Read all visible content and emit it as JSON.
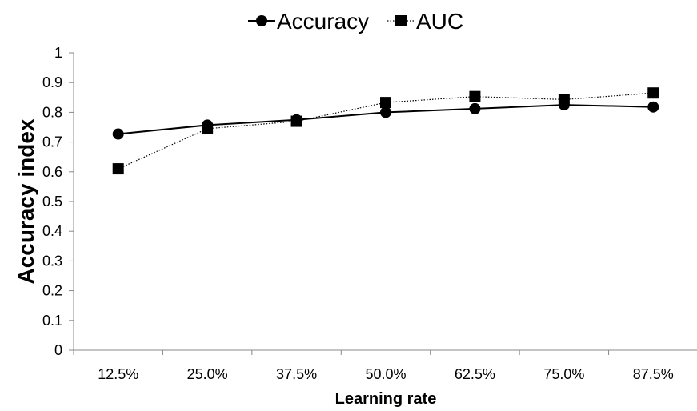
{
  "chart_data": {
    "type": "line",
    "categories": [
      "12.5%",
      "25.0%",
      "37.5%",
      "50.0%",
      "62.5%",
      "75.0%",
      "87.5%"
    ],
    "series": [
      {
        "name": "Accuracy",
        "values": [
          0.727,
          0.757,
          0.775,
          0.8,
          0.812,
          0.825,
          0.818
        ],
        "marker": "circle",
        "line_style": "solid",
        "color": "#000000"
      },
      {
        "name": "AUC",
        "values": [
          0.61,
          0.745,
          0.77,
          0.833,
          0.853,
          0.843,
          0.865
        ],
        "marker": "square",
        "line_style": "dotted",
        "color": "#000000"
      }
    ],
    "xlabel": "Learning rate",
    "ylabel": "Accuracy index",
    "ylim": [
      0,
      1
    ],
    "yticks": [
      "0",
      "0.1",
      "0.2",
      "0.3",
      "0.4",
      "0.5",
      "0.6",
      "0.7",
      "0.8",
      "0.9",
      "1"
    ],
    "grid": false,
    "legend_position": "top-center"
  }
}
